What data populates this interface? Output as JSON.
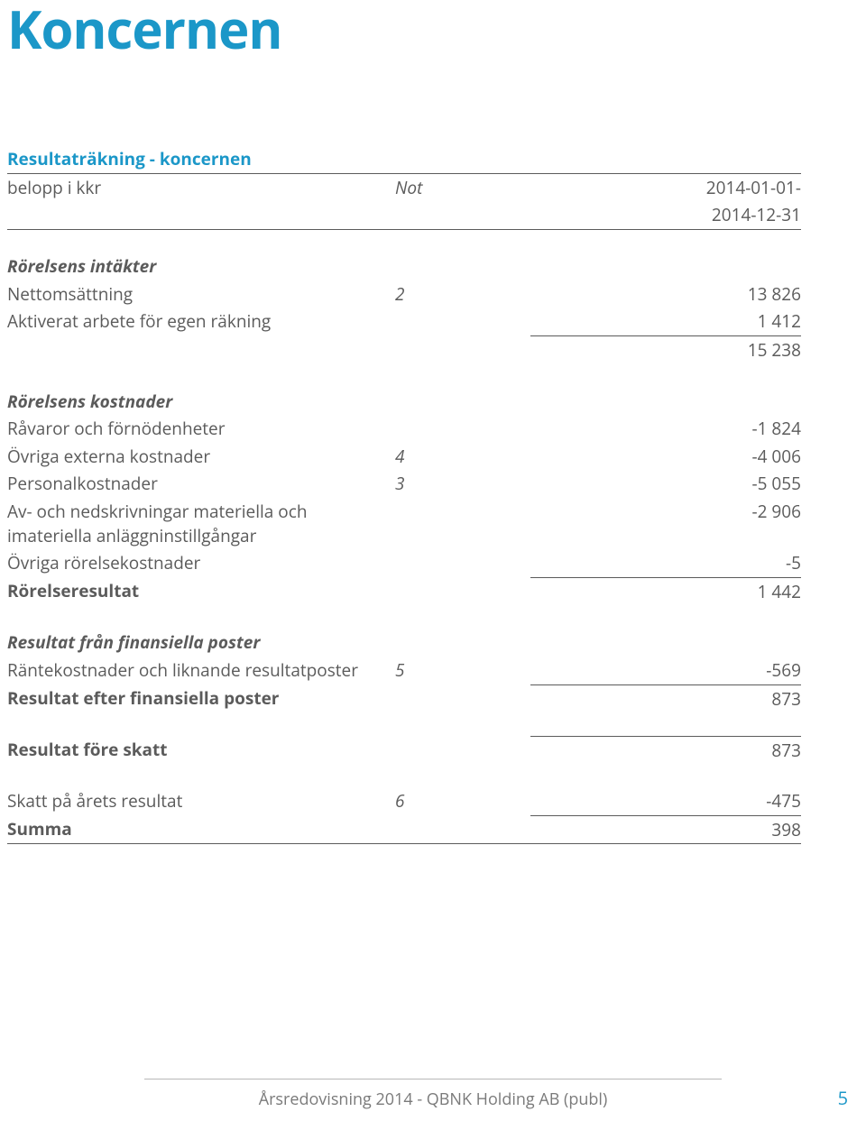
{
  "title": "Koncernen",
  "header": {
    "section": "Resultaträkning - koncernen",
    "col_label": "belopp i kkr",
    "col_not": "Not",
    "col_period_line1": "2014-01-01-",
    "col_period_line2": "2014-12-31"
  },
  "sec_intakter": {
    "heading": "Rörelsens intäkter",
    "rows": [
      {
        "label": "Nettomsättning",
        "not": "2",
        "val": "13 826"
      },
      {
        "label": "Aktiverat arbete för egen räkning",
        "not": "",
        "val": "1 412"
      }
    ],
    "subtotal": "15 238"
  },
  "sec_kostnader": {
    "heading": "Rörelsens kostnader",
    "rows": [
      {
        "label": "Råvaror och förnödenheter",
        "not": "",
        "val": "-1 824"
      },
      {
        "label": "Övriga externa kostnader",
        "not": "4",
        "val": "-4 006"
      },
      {
        "label": "Personalkostnader",
        "not": "3",
        "val": "-5 055"
      },
      {
        "label": "Av- och nedskrivningar materiella och imateriella anläggninstillgångar",
        "not": "",
        "val": "-2 906"
      },
      {
        "label": "Övriga rörelsekostnader",
        "not": "",
        "val": "-5"
      }
    ],
    "result_label": "Rörelseresultat",
    "result_val": "1 442"
  },
  "sec_fin": {
    "heading": "Resultat från finansiella poster",
    "rows": [
      {
        "label": "Räntekostnader och liknande resultatposter",
        "not": "5",
        "val": "-569"
      }
    ],
    "result_label": "Resultat efter finansiella poster",
    "result_val": "873"
  },
  "sec_skatt": {
    "pre_tax_label": "Resultat före skatt",
    "pre_tax_val": "873",
    "rows": [
      {
        "label": "Skatt på årets resultat",
        "not": "6",
        "val": "-475"
      }
    ],
    "sum_label": "Summa",
    "sum_val": "398"
  },
  "footer": {
    "text": "Årsredovisning 2014 - QBNK Holding AB (publ)",
    "page": "5"
  }
}
